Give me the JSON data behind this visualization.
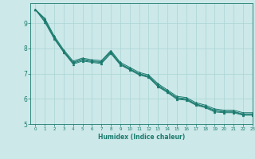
{
  "xlabel": "Humidex (Indice chaleur)",
  "ylabel": "",
  "xlim": [
    -0.5,
    23
  ],
  "ylim": [
    5.0,
    9.8
  ],
  "yticks": [
    5,
    6,
    7,
    8,
    9
  ],
  "xticks": [
    0,
    1,
    2,
    3,
    4,
    5,
    6,
    7,
    8,
    9,
    10,
    11,
    12,
    13,
    14,
    15,
    16,
    17,
    18,
    19,
    20,
    21,
    22,
    23
  ],
  "bg_color": "#cce8e8",
  "grid_color": "#aad4d4",
  "line_color": "#1a7a6e",
  "lines": [
    [
      9.55,
      9.2,
      8.5,
      7.95,
      7.5,
      7.62,
      7.55,
      7.52,
      7.92,
      7.45,
      7.25,
      7.05,
      6.95,
      6.6,
      6.35,
      6.1,
      6.05,
      5.85,
      5.75,
      5.6,
      5.55,
      5.55,
      5.45,
      5.45
    ],
    [
      9.55,
      9.15,
      8.45,
      7.9,
      7.45,
      7.58,
      7.5,
      7.48,
      7.88,
      7.4,
      7.2,
      7.0,
      6.9,
      6.55,
      6.3,
      6.05,
      6.0,
      5.8,
      5.7,
      5.55,
      5.5,
      5.5,
      5.4,
      5.4
    ],
    [
      9.55,
      9.1,
      8.42,
      7.88,
      7.42,
      7.54,
      7.48,
      7.44,
      7.84,
      7.38,
      7.18,
      6.98,
      6.88,
      6.52,
      6.28,
      6.02,
      5.98,
      5.78,
      5.68,
      5.52,
      5.48,
      5.48,
      5.38,
      5.38
    ],
    [
      9.55,
      9.05,
      8.38,
      7.85,
      7.38,
      7.5,
      7.45,
      7.4,
      7.8,
      7.35,
      7.15,
      6.95,
      6.85,
      6.48,
      6.25,
      5.98,
      5.95,
      5.75,
      5.65,
      5.48,
      5.45,
      5.45,
      5.35,
      5.35
    ]
  ]
}
